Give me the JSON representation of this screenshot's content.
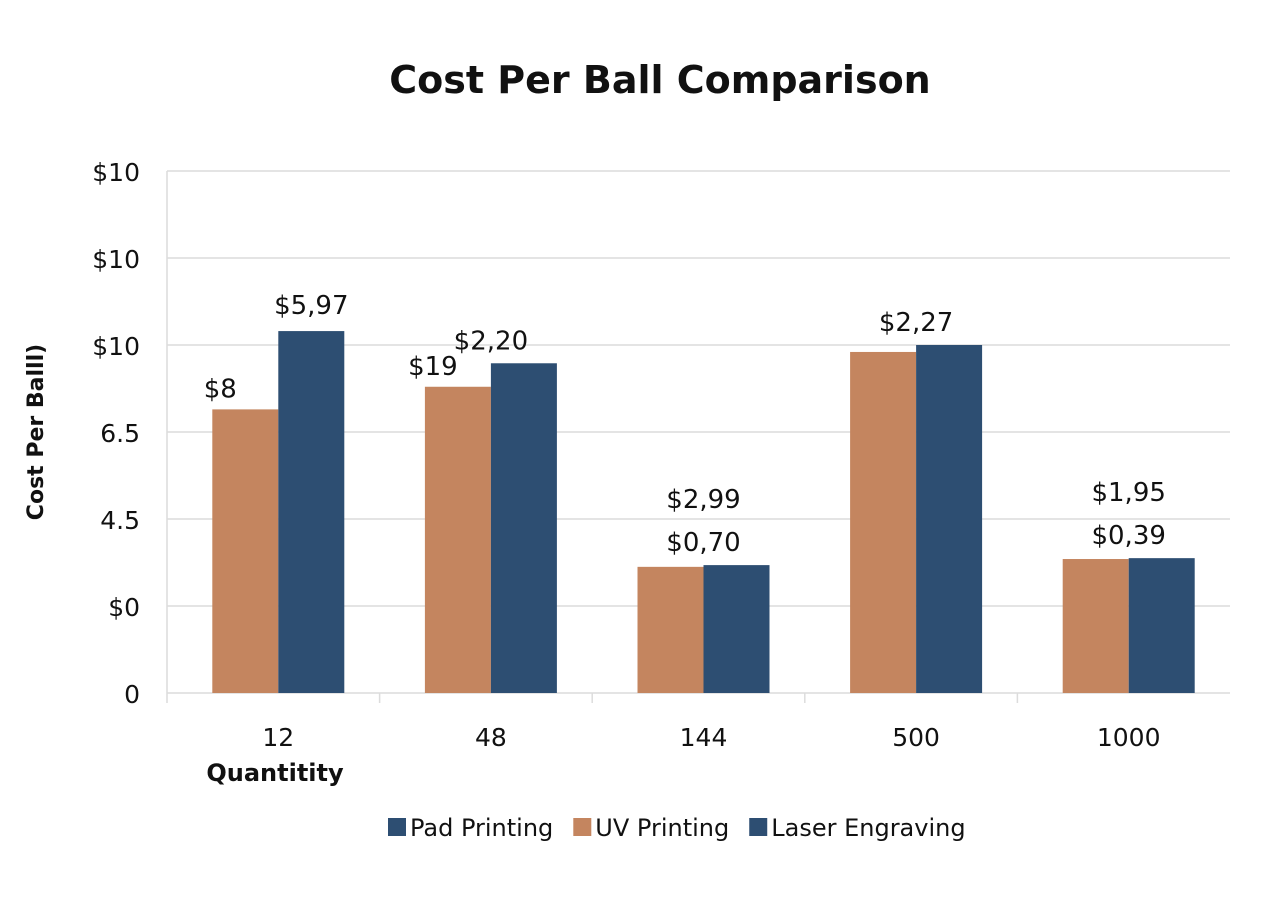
{
  "chart_data": {
    "type": "bar",
    "title": "Cost Per Ball Comparison",
    "xlabel": "Quantitity",
    "ylabel": "Cost Per Balll)",
    "categories": [
      "12",
      "48",
      "144",
      "500",
      "1000"
    ],
    "y_tick_labels": [
      "0",
      "$0",
      "4.5",
      "6.5",
      "$10",
      "$10",
      "$10"
    ],
    "ylim": [
      0,
      6
    ],
    "grid": true,
    "legend_placement": "bottom",
    "legend": [
      {
        "label": "Pad Printing",
        "color": "#2D4E72"
      },
      {
        "label": "UV Printing",
        "color": "#C4855F"
      },
      {
        "label": "Laser Engraving",
        "color": "#2D4E72"
      }
    ],
    "series": [
      {
        "name": "UV Printing",
        "color": "#C4855F",
        "values": [
          3.26,
          3.52,
          1.45,
          3.92,
          1.54
        ]
      },
      {
        "name": "Laser Engraving",
        "color": "#2D4E72",
        "values": [
          4.16,
          3.79,
          1.47,
          4.0,
          1.55
        ]
      }
    ],
    "data_labels": [
      [
        {
          "text": "$8",
          "anchor": 0
        },
        {
          "text": "$5,97",
          "anchor": 1
        }
      ],
      [
        {
          "text": "$19",
          "anchor": 0
        },
        {
          "text": "$2,20",
          "anchor": "group"
        }
      ],
      [
        {
          "text": "$0,70",
          "anchor": "group"
        },
        {
          "text": "$2,99",
          "anchor": "group"
        }
      ],
      [
        {
          "text": "$2,27",
          "anchor": "group"
        }
      ],
      [
        {
          "text": "$0,39",
          "anchor": "group"
        },
        {
          "text": "$1,95",
          "anchor": "group"
        }
      ]
    ]
  }
}
